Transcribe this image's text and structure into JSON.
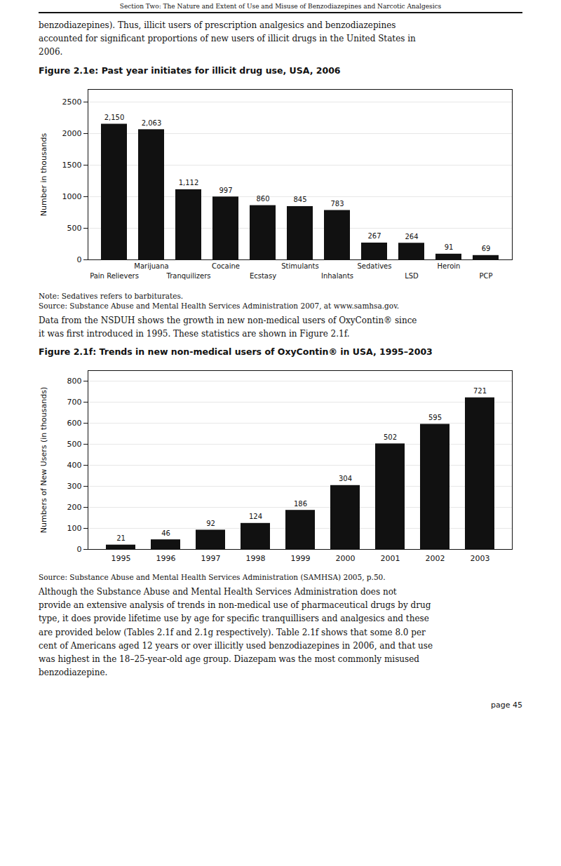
{
  "header": "Section Two: The Nature and Extent of Use and Misuse of Benzodiazepines and Narcotic Analgesics",
  "text": [
    "benzodiazepines). Thus, illicit users of prescription analgesics and benzodiazepines\naccounted for significant proportions of new users of illicit drugs in the United States in\n2006.",
    "Data from the NSDUH shows the growth in new non-medical users of OxyContin® since\nit was first introduced in 1995. These statistics are shown in Figure 2.1f.",
    "Although the Substance Abuse and Mental Health Services Administration does not\nprovide an extensive analysis of trends in non-medical use of pharmaceutical drugs by drug\ntype, it does provide lifetime use by age for specific tranquillisers and analgesics and these\nare provided below (Tables 2.1f and 2.1g respectively). Table 2.1f shows that some 8.0 per\ncent of Americans aged 12 years or over illicitly used benzodiazepines in 2006, and that use\nwas highest in the 18–25-year-old age group. Diazepam was the most commonly misused\nbenzodiazepine."
  ],
  "page_number": "page 45",
  "chart_data": [
    {
      "type": "bar",
      "title": "Figure 2.1e: Past year initiates for illicit drug use, USA, 2006",
      "categories": [
        "Pain Relievers",
        "Marijuana",
        "Tranquilizers",
        "Cocaine",
        "Ecstasy",
        "Stimulants",
        "Inhalants",
        "Sedatives",
        "LSD",
        "Heroin",
        "PCP"
      ],
      "values": [
        2150,
        2063,
        1112,
        997,
        860,
        845,
        783,
        267,
        264,
        91,
        69
      ],
      "value_labels": [
        "2,150",
        "2,063",
        "1,112",
        "997",
        "860",
        "845",
        "783",
        "267",
        "264",
        "91",
        "69"
      ],
      "data_labels": true,
      "ylabel": "Number in thousands",
      "ylim": [
        0,
        2700
      ],
      "yticks": [
        0,
        500,
        1000,
        1500,
        2000,
        2500
      ],
      "grid": true,
      "annotations": [
        "Note: Sedatives refers to barbiturates.",
        "Source: Substance Abuse and Mental Health Services Administration 2007, at www.samhsa.gov."
      ]
    },
    {
      "type": "bar",
      "title": "Figure 2.1f: Trends in new non-medical users of OxyContin® in USA, 1995–2003",
      "categories": [
        "1995",
        "1996",
        "1997",
        "1998",
        "1999",
        "2000",
        "2001",
        "2002",
        "2003"
      ],
      "values": [
        21,
        46,
        92,
        124,
        186,
        304,
        502,
        595,
        721
      ],
      "data_labels": true,
      "ylabel": "Numbers of New Users (in thousands)",
      "ylim": [
        0,
        850
      ],
      "yticks": [
        0,
        100,
        200,
        300,
        400,
        500,
        600,
        700,
        800
      ],
      "grid": true,
      "annotations": [
        "Source: Substance Abuse and Mental Health Services Administration (SAMHSA) 2005, p.50."
      ]
    }
  ]
}
